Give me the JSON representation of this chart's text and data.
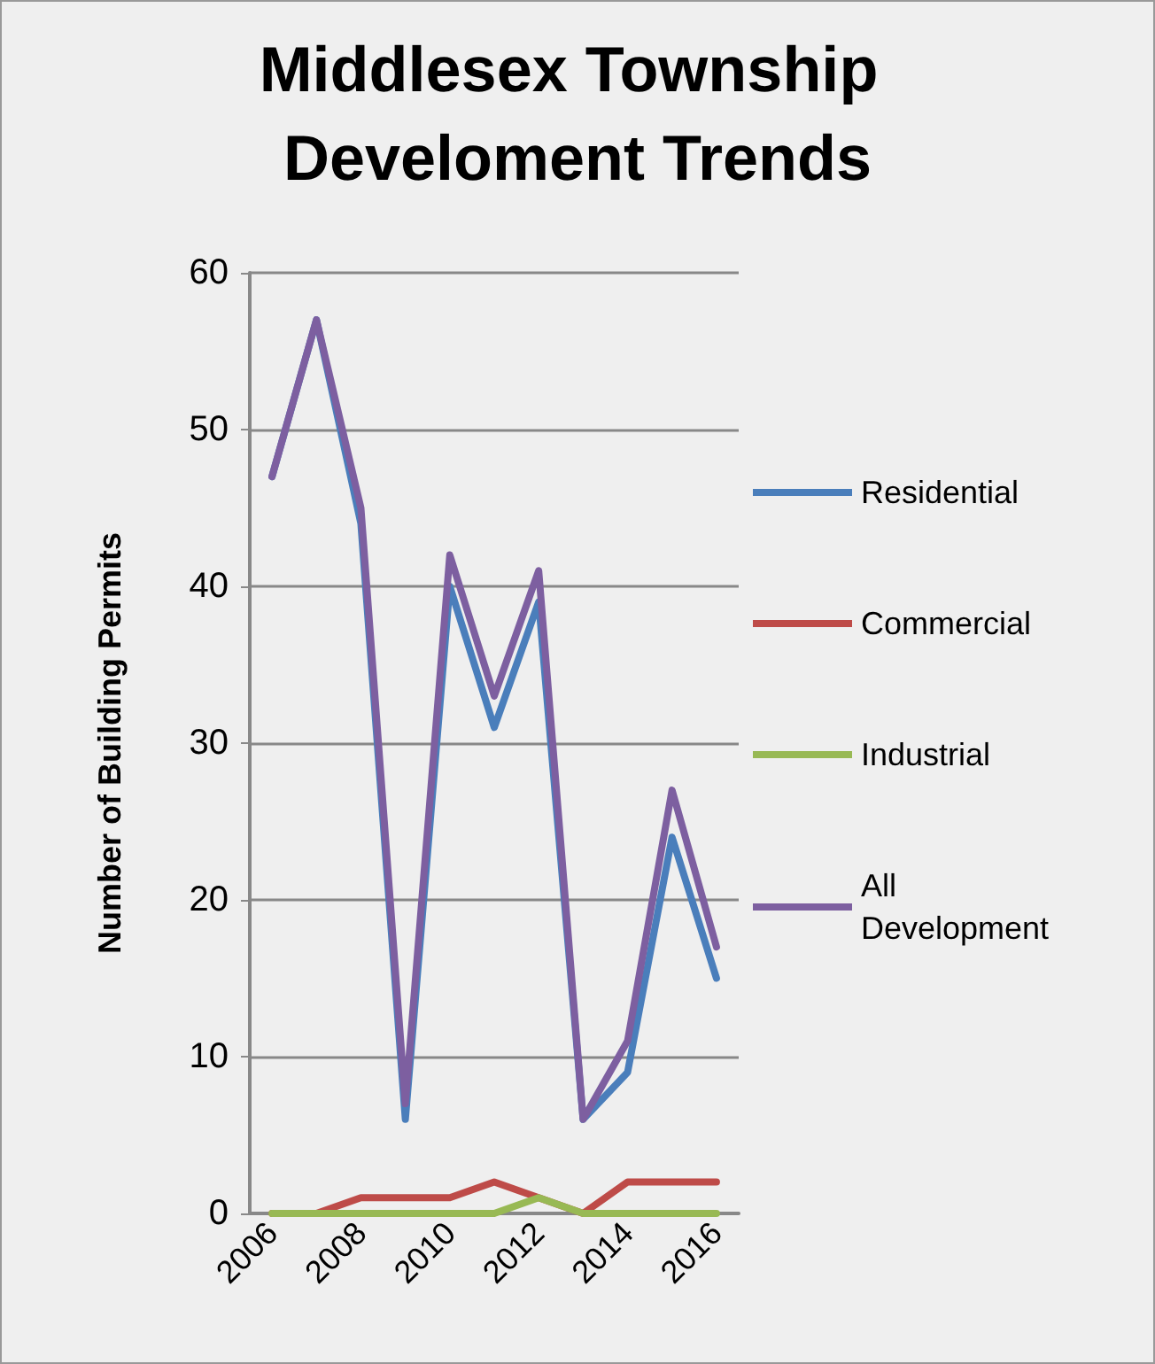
{
  "chart_data": {
    "type": "line",
    "title": "Middlesex Township Develoment Trends",
    "ylabel": "Number of Building Permits",
    "categories": [
      "2006",
      null,
      "2008",
      null,
      "2010",
      null,
      "2012",
      null,
      "2014",
      null,
      "2016"
    ],
    "series": [
      {
        "name": "Residential",
        "color": "#4a7ebb",
        "values": [
          47,
          57,
          44,
          6,
          40,
          31,
          39,
          6,
          9,
          24,
          15
        ]
      },
      {
        "name": "Commercial",
        "color": "#be4b48",
        "values": [
          0,
          0,
          1,
          1,
          1,
          2,
          1,
          0,
          2,
          2,
          2
        ]
      },
      {
        "name": "Industrial",
        "color": "#98b954",
        "values": [
          0,
          0,
          0,
          0,
          0,
          0,
          1,
          0,
          0,
          0,
          0
        ]
      },
      {
        "name": "All Development",
        "color": "#7d5fa0",
        "values": [
          47,
          57,
          45,
          7,
          42,
          33,
          41,
          6,
          11,
          27,
          17
        ]
      }
    ],
    "ylim": [
      0,
      60
    ],
    "yticks": [
      0,
      10,
      20,
      30,
      40,
      50,
      60
    ],
    "grid": "y",
    "legend": "right",
    "marker": "none",
    "line_style": "solid"
  }
}
